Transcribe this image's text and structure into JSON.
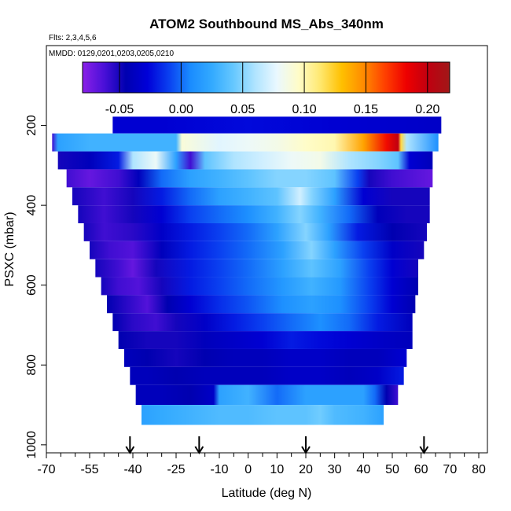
{
  "chart_data": {
    "type": "heatmap",
    "title": "ATOM2 Southbound MS_Abs_340nm",
    "subtitle_flights": "Flts: 2,3,4,5,6",
    "subtitle_dates": "MMDD: 0129,0201,0203,0205,0210",
    "xlabel": "Latitude (deg N)",
    "ylabel": "PSXC (mbar)",
    "xlim": [
      -70,
      83
    ],
    "ylim": [
      1020,
      0
    ],
    "x_tick_labels": [
      "-70",
      "-55",
      "-40",
      "-25",
      "-10",
      "0",
      "10",
      "20",
      "30",
      "40",
      "50",
      "60",
      "70",
      "80"
    ],
    "x_tick_values": [
      -70,
      -55,
      -40,
      -25,
      -10,
      0,
      10,
      20,
      30,
      40,
      50,
      60,
      70,
      80
    ],
    "x_minor_ticks": [
      -65,
      -60,
      -50,
      -45,
      -35,
      -30,
      -20,
      -15,
      -5,
      5,
      15,
      25,
      35,
      45,
      55,
      65,
      75
    ],
    "y_tick_labels": [
      "200",
      "400",
      "600",
      "800",
      "1000"
    ],
    "y_tick_values": [
      200,
      400,
      600,
      800,
      1000
    ],
    "colorbar": {
      "range": [
        -0.08,
        0.218
      ],
      "tick_labels": [
        "-0.05",
        "0.00",
        "0.05",
        "0.10",
        "0.15",
        "0.20"
      ],
      "tick_values": [
        -0.05,
        0.0,
        0.05,
        0.1,
        0.15,
        0.2
      ],
      "colors": [
        "#8a20e8",
        "#4a10d8",
        "#0000b0",
        "#0000d8",
        "#0a40f0",
        "#1a8cff",
        "#33aaff",
        "#66c8ff",
        "#b0e4ff",
        "#eaf8ff",
        "#fffcc8",
        "#ffe870",
        "#ffc000",
        "#ff8c00",
        "#ff4000",
        "#ee0000",
        "#c00010",
        "#a01818"
      ]
    },
    "flight_arrows_latitude": [
      -41,
      -17,
      20,
      61
    ],
    "layers": [
      {
        "p_top": 178,
        "p_bot": 220,
        "lat_min": -47,
        "lat_max": 67,
        "values": [
          [
            -47,
            -0.03
          ],
          [
            -30,
            -0.03
          ],
          [
            0,
            -0.025
          ],
          [
            30,
            -0.03
          ],
          [
            67,
            -0.035
          ]
        ]
      },
      {
        "p_top": 220,
        "p_bot": 265,
        "lat_min": -68,
        "lat_max": 66,
        "values": [
          [
            -68,
            -0.06
          ],
          [
            -66,
            0.02
          ],
          [
            -55,
            0.03
          ],
          [
            -40,
            0.03
          ],
          [
            -25,
            0.03
          ],
          [
            -23,
            0.09
          ],
          [
            -10,
            0.075
          ],
          [
            0,
            0.08
          ],
          [
            10,
            0.085
          ],
          [
            20,
            0.095
          ],
          [
            30,
            0.1
          ],
          [
            40,
            0.14
          ],
          [
            48,
            0.18
          ],
          [
            52,
            0.2
          ],
          [
            53,
            0.12
          ],
          [
            55,
            0.06
          ],
          [
            66,
            0.01
          ]
        ]
      },
      {
        "p_top": 265,
        "p_bot": 310,
        "lat_min": -66,
        "lat_max": 64,
        "values": [
          [
            -66,
            -0.05
          ],
          [
            -55,
            -0.04
          ],
          [
            -45,
            -0.02
          ],
          [
            -40,
            0.06
          ],
          [
            -32,
            0.08
          ],
          [
            -25,
            0.02
          ],
          [
            -20,
            -0.06
          ],
          [
            -15,
            0.04
          ],
          [
            -5,
            0.06
          ],
          [
            5,
            0.07
          ],
          [
            15,
            0.08
          ],
          [
            25,
            0.085
          ],
          [
            35,
            0.06
          ],
          [
            45,
            0.05
          ],
          [
            52,
            0.04
          ],
          [
            56,
            -0.03
          ],
          [
            64,
            -0.04
          ]
        ]
      },
      {
        "p_top": 310,
        "p_bot": 355,
        "lat_min": -63,
        "lat_max": 64,
        "values": [
          [
            -63,
            -0.06
          ],
          [
            -55,
            -0.07
          ],
          [
            -45,
            -0.06
          ],
          [
            -38,
            -0.04
          ],
          [
            -30,
            0.0
          ],
          [
            -20,
            0.02
          ],
          [
            -10,
            0.03
          ],
          [
            0,
            0.04
          ],
          [
            10,
            0.05
          ],
          [
            20,
            0.05
          ],
          [
            30,
            0.04
          ],
          [
            38,
            -0.01
          ],
          [
            42,
            -0.05
          ],
          [
            50,
            -0.06
          ],
          [
            64,
            -0.07
          ]
        ]
      },
      {
        "p_top": 355,
        "p_bot": 400,
        "lat_min": -61,
        "lat_max": 63,
        "values": [
          [
            -61,
            -0.05
          ],
          [
            -50,
            -0.06
          ],
          [
            -40,
            -0.05
          ],
          [
            -30,
            -0.02
          ],
          [
            -20,
            0.0
          ],
          [
            -10,
            0.02
          ],
          [
            0,
            0.03
          ],
          [
            10,
            0.04
          ],
          [
            18,
            0.07
          ],
          [
            22,
            0.05
          ],
          [
            30,
            0.02
          ],
          [
            40,
            -0.03
          ],
          [
            50,
            -0.05
          ],
          [
            63,
            -0.05
          ]
        ]
      },
      {
        "p_top": 400,
        "p_bot": 445,
        "lat_min": -59,
        "lat_max": 63,
        "values": [
          [
            -59,
            -0.05
          ],
          [
            -50,
            -0.06
          ],
          [
            -40,
            -0.05
          ],
          [
            -30,
            -0.03
          ],
          [
            -20,
            -0.01
          ],
          [
            -10,
            0.0
          ],
          [
            0,
            0.01
          ],
          [
            10,
            0.03
          ],
          [
            18,
            0.05
          ],
          [
            25,
            0.03
          ],
          [
            35,
            0.0
          ],
          [
            45,
            -0.04
          ],
          [
            55,
            -0.05
          ],
          [
            63,
            -0.05
          ]
        ]
      },
      {
        "p_top": 445,
        "p_bot": 490,
        "lat_min": -57,
        "lat_max": 62,
        "values": [
          [
            -57,
            -0.05
          ],
          [
            -50,
            -0.06
          ],
          [
            -40,
            -0.055
          ],
          [
            -30,
            -0.035
          ],
          [
            -20,
            -0.02
          ],
          [
            -10,
            -0.01
          ],
          [
            0,
            0.0
          ],
          [
            10,
            0.02
          ],
          [
            20,
            0.05
          ],
          [
            28,
            0.02
          ],
          [
            38,
            -0.02
          ],
          [
            50,
            -0.045
          ],
          [
            62,
            -0.05
          ]
        ]
      },
      {
        "p_top": 490,
        "p_bot": 535,
        "lat_min": -55,
        "lat_max": 61,
        "values": [
          [
            -55,
            -0.05
          ],
          [
            -48,
            -0.06
          ],
          [
            -40,
            -0.065
          ],
          [
            -30,
            -0.04
          ],
          [
            -20,
            -0.02
          ],
          [
            -10,
            -0.01
          ],
          [
            0,
            0.0
          ],
          [
            12,
            0.02
          ],
          [
            22,
            0.05
          ],
          [
            30,
            0.02
          ],
          [
            40,
            -0.01
          ],
          [
            50,
            -0.035
          ],
          [
            61,
            -0.05
          ]
        ]
      },
      {
        "p_top": 535,
        "p_bot": 580,
        "lat_min": -53,
        "lat_max": 59,
        "values": [
          [
            -53,
            -0.05
          ],
          [
            -45,
            -0.06
          ],
          [
            -40,
            -0.07
          ],
          [
            -32,
            -0.05
          ],
          [
            -20,
            -0.02
          ],
          [
            -10,
            -0.01
          ],
          [
            0,
            0.0
          ],
          [
            12,
            0.02
          ],
          [
            22,
            0.04
          ],
          [
            32,
            0.02
          ],
          [
            42,
            -0.01
          ],
          [
            50,
            -0.03
          ],
          [
            59,
            -0.05
          ]
        ]
      },
      {
        "p_top": 580,
        "p_bot": 625,
        "lat_min": -51,
        "lat_max": 59,
        "values": [
          [
            -51,
            -0.05
          ],
          [
            -45,
            -0.06
          ],
          [
            -38,
            -0.065
          ],
          [
            -30,
            -0.05
          ],
          [
            -20,
            -0.02
          ],
          [
            -10,
            -0.01
          ],
          [
            0,
            0.0
          ],
          [
            12,
            0.015
          ],
          [
            22,
            0.03
          ],
          [
            32,
            0.015
          ],
          [
            42,
            -0.01
          ],
          [
            50,
            -0.03
          ],
          [
            59,
            -0.045
          ]
        ]
      },
      {
        "p_top": 625,
        "p_bot": 670,
        "lat_min": -49,
        "lat_max": 58,
        "values": [
          [
            -49,
            -0.045
          ],
          [
            -42,
            -0.055
          ],
          [
            -35,
            -0.065
          ],
          [
            -28,
            -0.045
          ],
          [
            -20,
            -0.03
          ],
          [
            -10,
            -0.015
          ],
          [
            0,
            -0.005
          ],
          [
            12,
            0.01
          ],
          [
            22,
            0.02
          ],
          [
            32,
            0.01
          ],
          [
            42,
            -0.01
          ],
          [
            50,
            -0.03
          ],
          [
            58,
            -0.045
          ]
        ]
      },
      {
        "p_top": 670,
        "p_bot": 715,
        "lat_min": -47,
        "lat_max": 57,
        "values": [
          [
            -47,
            -0.045
          ],
          [
            -40,
            -0.055
          ],
          [
            -32,
            -0.06
          ],
          [
            -25,
            -0.05
          ],
          [
            -15,
            -0.035
          ],
          [
            -5,
            -0.02
          ],
          [
            5,
            -0.01
          ],
          [
            15,
            0.0
          ],
          [
            25,
            0.01
          ],
          [
            35,
            0.0
          ],
          [
            45,
            -0.02
          ],
          [
            57,
            -0.04
          ]
        ]
      },
      {
        "p_top": 715,
        "p_bot": 760,
        "lat_min": -45,
        "lat_max": 57,
        "values": [
          [
            -45,
            -0.045
          ],
          [
            -35,
            -0.05
          ],
          [
            -25,
            -0.05
          ],
          [
            -15,
            -0.04
          ],
          [
            -5,
            -0.035
          ],
          [
            5,
            -0.03
          ],
          [
            15,
            -0.02
          ],
          [
            25,
            -0.025
          ],
          [
            35,
            -0.03
          ],
          [
            45,
            -0.035
          ],
          [
            57,
            -0.04
          ]
        ]
      },
      {
        "p_top": 760,
        "p_bot": 805,
        "lat_min": -43,
        "lat_max": 55,
        "values": [
          [
            -43,
            -0.04
          ],
          [
            -35,
            -0.045
          ],
          [
            -25,
            -0.05
          ],
          [
            -15,
            -0.045
          ],
          [
            -5,
            -0.04
          ],
          [
            5,
            -0.04
          ],
          [
            15,
            -0.035
          ],
          [
            25,
            -0.035
          ],
          [
            35,
            -0.04
          ],
          [
            45,
            -0.04
          ],
          [
            55,
            -0.03
          ]
        ]
      },
      {
        "p_top": 805,
        "p_bot": 850,
        "lat_min": -41,
        "lat_max": 54,
        "values": [
          [
            -41,
            -0.04
          ],
          [
            -35,
            -0.04
          ],
          [
            -25,
            -0.045
          ],
          [
            -15,
            -0.04
          ],
          [
            -5,
            -0.04
          ],
          [
            5,
            -0.04
          ],
          [
            15,
            -0.035
          ],
          [
            25,
            -0.035
          ],
          [
            35,
            -0.04
          ],
          [
            45,
            -0.035
          ],
          [
            54,
            -0.02
          ]
        ]
      },
      {
        "p_top": 850,
        "p_bot": 900,
        "lat_min": -39,
        "lat_max": 52,
        "values": [
          [
            -39,
            -0.04
          ],
          [
            -30,
            -0.04
          ],
          [
            -20,
            -0.045
          ],
          [
            -12,
            -0.035
          ],
          [
            -10,
            0.02
          ],
          [
            0,
            0.03
          ],
          [
            10,
            0.0
          ],
          [
            20,
            0.02
          ],
          [
            30,
            0.02
          ],
          [
            40,
            0.02
          ],
          [
            44,
            0.0
          ],
          [
            48,
            -0.045
          ],
          [
            52,
            -0.06
          ]
        ]
      },
      {
        "p_top": 900,
        "p_bot": 950,
        "lat_min": -37,
        "lat_max": 47,
        "values": [
          [
            -37,
            0.02
          ],
          [
            -30,
            0.025
          ],
          [
            -20,
            0.03
          ],
          [
            -10,
            0.035
          ],
          [
            0,
            0.035
          ],
          [
            10,
            0.04
          ],
          [
            20,
            0.04
          ],
          [
            25,
            0.045
          ],
          [
            30,
            0.035
          ],
          [
            40,
            0.03
          ],
          [
            47,
            0.02
          ]
        ]
      }
    ]
  }
}
